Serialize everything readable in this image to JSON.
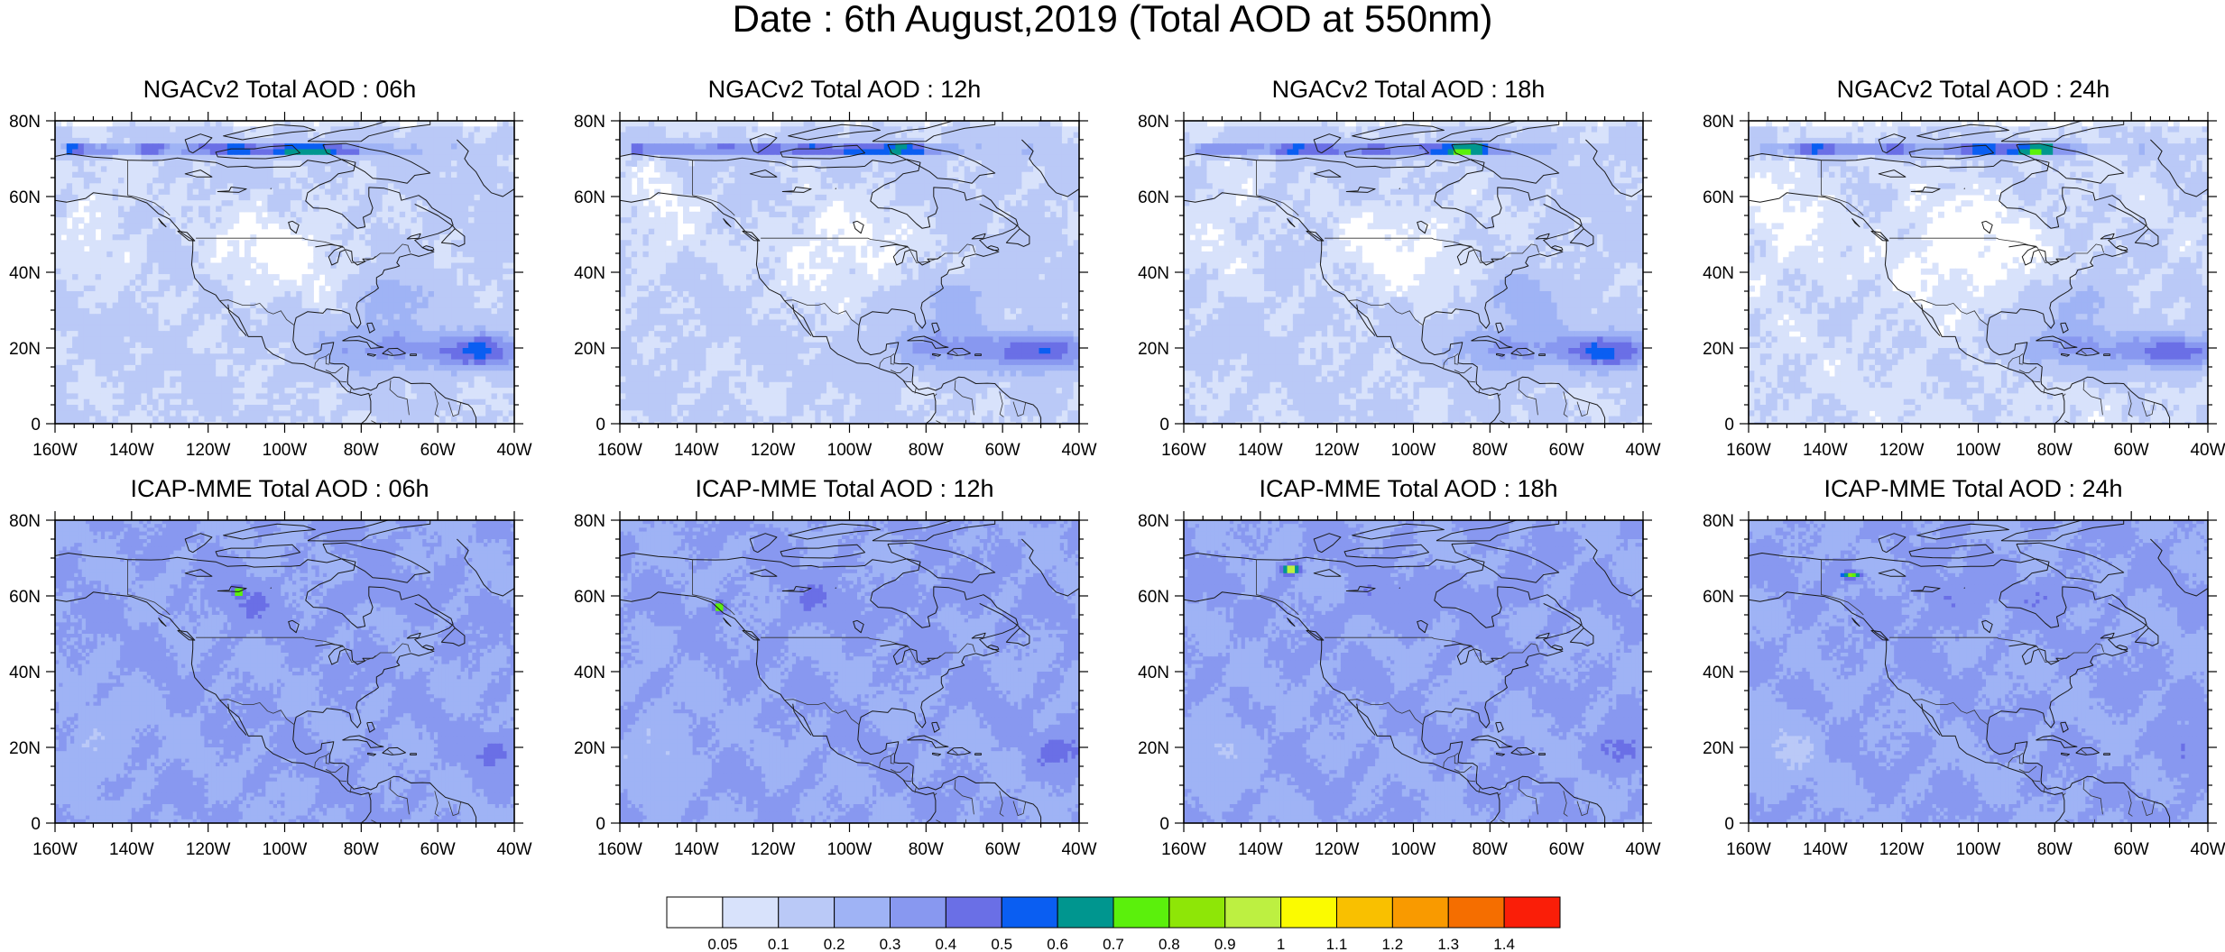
{
  "title": "Date : 6th August,2019 (Total AOD at 550nm)",
  "x_ticks": [
    "160W",
    "140W",
    "120W",
    "100W",
    "80W",
    "60W",
    "40W"
  ],
  "y_ticks": [
    "0",
    "20N",
    "40N",
    "60N",
    "80N"
  ],
  "panels": [
    {
      "title": "NGACv2 Total AOD : 06h",
      "model": "ngac",
      "hour": 6
    },
    {
      "title": "NGACv2 Total AOD : 12h",
      "model": "ngac",
      "hour": 12
    },
    {
      "title": "NGACv2 Total AOD : 18h",
      "model": "ngac",
      "hour": 18
    },
    {
      "title": "NGACv2 Total AOD : 24h",
      "model": "ngac",
      "hour": 24
    },
    {
      "title": "ICAP-MME Total AOD : 06h",
      "model": "icap",
      "hour": 6
    },
    {
      "title": "ICAP-MME Total AOD : 12h",
      "model": "icap",
      "hour": 12
    },
    {
      "title": "ICAP-MME Total AOD : 18h",
      "model": "icap",
      "hour": 18
    },
    {
      "title": "ICAP-MME Total AOD : 24h",
      "model": "icap",
      "hour": 24
    }
  ],
  "colorbar": {
    "labels": [
      "0.05",
      "0.1",
      "0.2",
      "0.3",
      "0.4",
      "0.5",
      "0.6",
      "0.7",
      "0.8",
      "0.9",
      "1",
      "1.1",
      "1.2",
      "1.3",
      "1.4"
    ],
    "colors": [
      "#ffffff",
      "#d8e2fb",
      "#bac9f7",
      "#9fb3f5",
      "#8898f0",
      "#6a6fe6",
      "#0a5ef2",
      "#00968f",
      "#5bf00c",
      "#8ee607",
      "#bdf041",
      "#fbfb00",
      "#f9c000",
      "#f99a00",
      "#f56e00",
      "#fa1e08"
    ]
  }
}
